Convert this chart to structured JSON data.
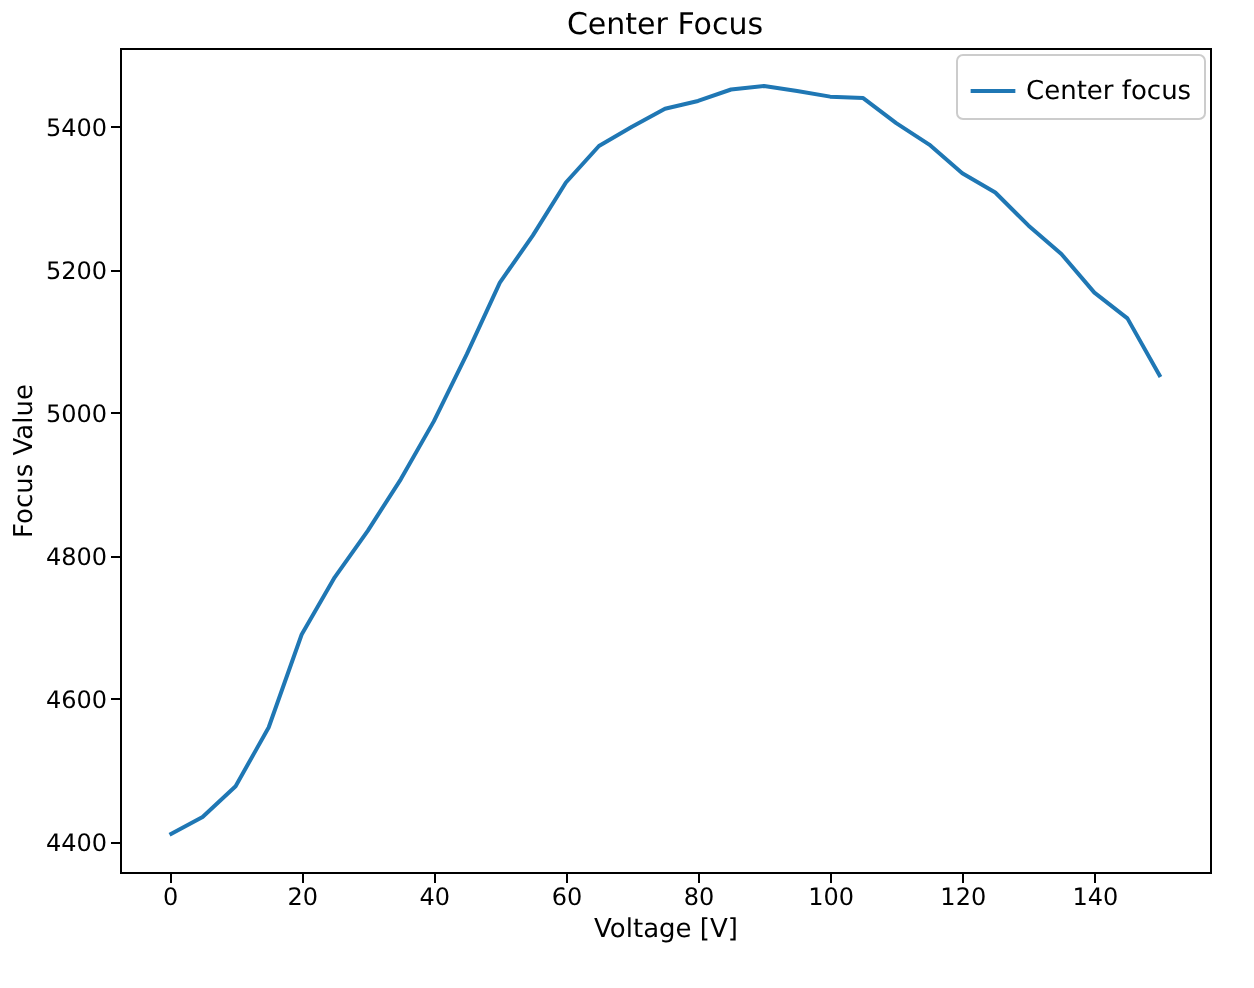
{
  "chart_data": {
    "type": "line",
    "title": "Center Focus",
    "xlabel": "Voltage [V]",
    "ylabel": "Focus Value",
    "x": [
      0,
      5,
      10,
      15,
      20,
      25,
      30,
      35,
      40,
      45,
      50,
      55,
      60,
      65,
      70,
      75,
      80,
      85,
      90,
      95,
      100,
      105,
      110,
      115,
      120,
      125,
      130,
      135,
      140,
      145,
      150
    ],
    "series": [
      {
        "name": "Center focus",
        "color": "#1f77b4",
        "values": [
          4410,
          4435,
          4478,
          4560,
          4690,
          4770,
          4835,
          4907,
          4988,
          5082,
          5182,
          5248,
          5322,
          5373,
          5400,
          5425,
          5436,
          5452,
          5457,
          5450,
          5442,
          5440,
          5405,
          5375,
          5335,
          5308,
          5262,
          5222,
          5168,
          5132,
          5050
        ]
      }
    ],
    "xlim": [
      -7.5,
      157.5
    ],
    "xticks": [
      0,
      20,
      40,
      60,
      80,
      100,
      120,
      140
    ],
    "ylim": [
      4358,
      5510
    ],
    "yticks": [
      4400,
      4600,
      4800,
      5000,
      5200,
      5400
    ],
    "grid": false,
    "legend": "top right",
    "marker": "none",
    "line_style": "solid"
  }
}
